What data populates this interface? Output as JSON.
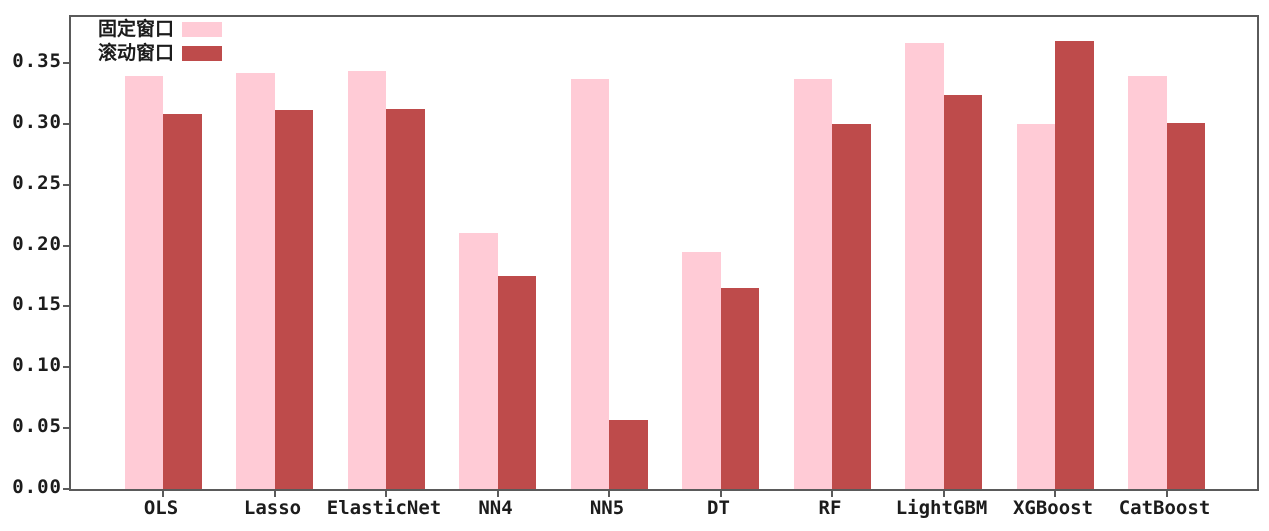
{
  "chart_data": {
    "type": "bar",
    "title": "",
    "xlabel": "",
    "ylabel": "",
    "categories": [
      "OLS",
      "Lasso",
      "ElasticNet",
      "NN4",
      "NN5",
      "DT",
      "RF",
      "LightGBM",
      "XGBoost",
      "CatBoost"
    ],
    "series": [
      {
        "name": "固定窗口",
        "key": "fixed-window",
        "color": "#FFCBD6",
        "values": [
          0.339,
          0.342,
          0.343,
          0.21,
          0.337,
          0.195,
          0.337,
          0.366,
          0.3,
          0.339
        ]
      },
      {
        "name": "滚动窗口",
        "key": "rolling-window",
        "color": "#BE4B4B",
        "values": [
          0.308,
          0.311,
          0.312,
          0.175,
          0.057,
          0.165,
          0.3,
          0.324,
          0.368,
          0.301
        ]
      }
    ],
    "ylim": [
      0.0,
      0.3877
    ],
    "ytick_values": [
      0.0,
      0.05,
      0.1,
      0.15,
      0.2,
      0.25,
      0.3,
      0.35
    ],
    "ytick_labels": [
      "0.00",
      "0.05",
      "0.10",
      "0.15",
      "0.20",
      "0.25",
      "0.30",
      "0.35"
    ],
    "grid": false,
    "legend_position": "upper-left",
    "spine_color": "#5a5a5a"
  }
}
